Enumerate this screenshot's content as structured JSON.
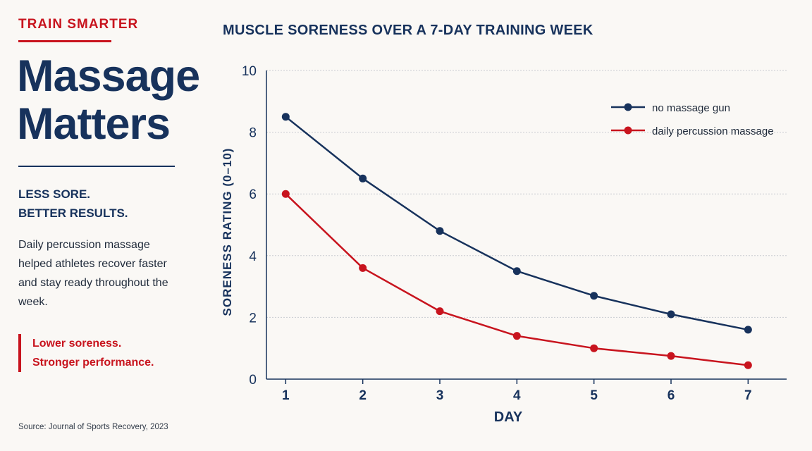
{
  "panel": {
    "eyebrow": "TRAIN SMARTER",
    "headline": [
      "Massage",
      "Matters"
    ],
    "subhead": [
      "LESS SORE.",
      "BETTER RESULTS."
    ],
    "body": "Daily percussion massage helped athletes recover faster and stay ready throughout the week.",
    "callout": [
      "Lower soreness.",
      "Stronger performance."
    ],
    "source": "Source: Journal of Sports Recovery, 2023"
  },
  "colors": {
    "navy": "#17325c",
    "red": "#c8141e",
    "grid": "#c9ccd1"
  },
  "chart_data": {
    "type": "line",
    "title": "MUSCLE SORENESS OVER A 7-DAY TRAINING WEEK",
    "xlabel": "DAY",
    "ylabel": "SORENESS RATING (0–10)",
    "x": [
      1,
      2,
      3,
      4,
      5,
      6,
      7
    ],
    "xlim": [
      0.75,
      7.5
    ],
    "ylim": [
      0,
      10
    ],
    "yticks": [
      0,
      2,
      4,
      6,
      8,
      10
    ],
    "grid": true,
    "legend": "top-right",
    "series": [
      {
        "name": "no massage gun",
        "color": "#17325c",
        "values": [
          8.5,
          6.5,
          4.8,
          3.5,
          2.7,
          2.1,
          1.6
        ]
      },
      {
        "name": "daily percussion massage",
        "color": "#c8141e",
        "values": [
          6.0,
          3.6,
          2.2,
          1.4,
          1.0,
          0.75,
          0.45
        ]
      }
    ]
  }
}
